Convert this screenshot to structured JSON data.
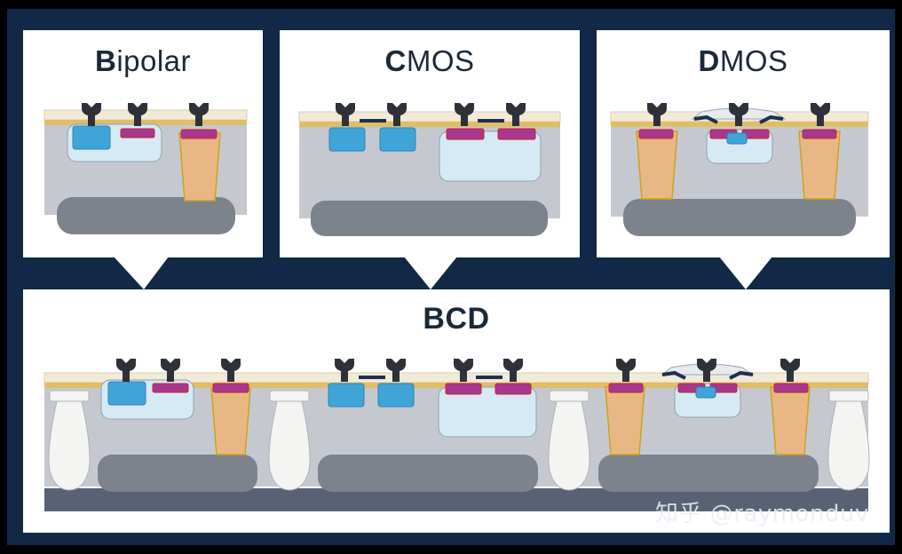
{
  "panels": {
    "bipolar": {
      "title_lead": "B",
      "title_rest": "ipolar"
    },
    "cmos": {
      "title_lead": "C",
      "title_rest": "MOS"
    },
    "dmos": {
      "title_lead": "D",
      "title_rest": "MOS"
    },
    "bcd": {
      "title": "BCD"
    }
  },
  "watermark": "知乎 @raymonduv",
  "colors": {
    "frame": "#112846",
    "panel": "#ffffff",
    "substrate": "#c5c9cf",
    "buried_layer": "#7c838c",
    "bcd_bottom": "#586274",
    "light_well": "#d6eaf6",
    "n_plus": "#3fa5d8",
    "p_plus": "#a8378f",
    "sinker": "#e9b784",
    "oxide": "#f1ead6",
    "gold_layer": "#e1bd65",
    "contact": "#2e3238",
    "isolation": "#f4f4f2"
  },
  "icons": [
    "contact-icon",
    "trench-isolation-icon"
  ]
}
